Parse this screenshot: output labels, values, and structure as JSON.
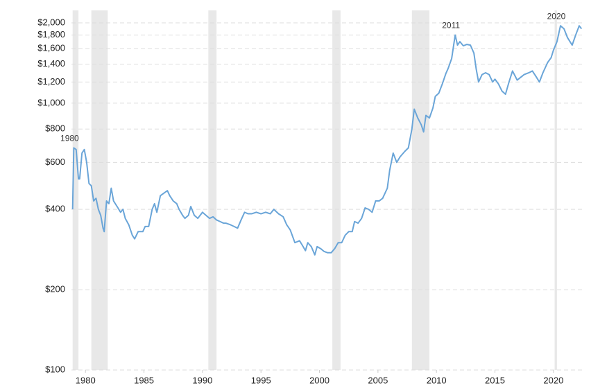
{
  "chart_data": {
    "type": "line",
    "log_y": true,
    "grid": true,
    "xlim": [
      1978.8,
      2022.5
    ],
    "xticks": [
      1980,
      1985,
      1990,
      1995,
      2000,
      2005,
      2010,
      2015,
      2020
    ],
    "ylim": [
      100,
      2200
    ],
    "yticks": [
      {
        "value": 100,
        "label": "$100"
      },
      {
        "value": 200,
        "label": "$200"
      },
      {
        "value": 400,
        "label": "$400"
      },
      {
        "value": 600,
        "label": "$600"
      },
      {
        "value": 800,
        "label": "$800"
      },
      {
        "value": 1000,
        "label": "$1,000"
      },
      {
        "value": 1200,
        "label": "$1,200"
      },
      {
        "value": 1400,
        "label": "$1,400"
      },
      {
        "value": 1600,
        "label": "$1,600"
      },
      {
        "value": 1800,
        "label": "$1,800"
      },
      {
        "value": 2000,
        "label": "$2,000"
      }
    ],
    "recession_color": "#e8e8e8",
    "recessions": [
      [
        1978.9,
        1979.4
      ],
      [
        1980.5,
        1981.9
      ],
      [
        1990.5,
        1991.2
      ],
      [
        2001.1,
        2001.8
      ],
      [
        2007.9,
        2009.4
      ],
      [
        2020.1,
        2020.3
      ]
    ],
    "annotations": [
      {
        "label": "1980",
        "x": 1979.0,
        "y": 680
      },
      {
        "label": "2011",
        "x": 2011.6,
        "y": 1800
      },
      {
        "label": "2020",
        "x": 2020.6,
        "y": 1950
      }
    ],
    "x": [
      1978.9,
      1979.0,
      1979.2,
      1979.4,
      1979.5,
      1979.7,
      1979.9,
      1980.1,
      1980.3,
      1980.5,
      1980.7,
      1980.9,
      1981.1,
      1981.3,
      1981.5,
      1981.6,
      1981.8,
      1982.0,
      1982.2,
      1982.4,
      1982.7,
      1983.0,
      1983.2,
      1983.4,
      1983.7,
      1984.0,
      1984.2,
      1984.5,
      1984.9,
      1985.1,
      1985.4,
      1985.7,
      1985.9,
      1986.1,
      1986.4,
      1986.7,
      1987.0,
      1987.2,
      1987.5,
      1987.8,
      1988.0,
      1988.3,
      1988.5,
      1988.8,
      1989.0,
      1989.3,
      1989.6,
      1990.0,
      1990.3,
      1990.6,
      1990.9,
      1991.2,
      1991.5,
      1991.8,
      1992.0,
      1992.4,
      1992.7,
      1993.0,
      1993.3,
      1993.6,
      1993.9,
      1994.2,
      1994.6,
      1995.0,
      1995.4,
      1995.8,
      1996.1,
      1996.5,
      1996.9,
      1997.2,
      1997.5,
      1997.9,
      1998.3,
      1998.6,
      1998.8,
      1999.0,
      1999.3,
      1999.6,
      1999.8,
      2000.1,
      2000.4,
      2000.7,
      2001.0,
      2001.3,
      2001.6,
      2001.9,
      2002.2,
      2002.5,
      2002.8,
      2003.0,
      2003.3,
      2003.6,
      2003.9,
      2004.2,
      2004.5,
      2004.8,
      2005.1,
      2005.4,
      2005.8,
      2006.0,
      2006.3,
      2006.6,
      2006.9,
      2007.3,
      2007.6,
      2007.9,
      2008.1,
      2008.4,
      2008.7,
      2008.9,
      2009.1,
      2009.4,
      2009.7,
      2009.9,
      2010.2,
      2010.5,
      2010.8,
      2011.0,
      2011.3,
      2011.6,
      2011.8,
      2012.0,
      2012.3,
      2012.6,
      2012.9,
      2013.2,
      2013.4,
      2013.6,
      2013.9,
      2014.2,
      2014.5,
      2014.8,
      2015.0,
      2015.3,
      2015.6,
      2015.9,
      2016.2,
      2016.5,
      2016.9,
      2017.2,
      2017.5,
      2017.9,
      2018.2,
      2018.5,
      2018.8,
      2019.1,
      2019.5,
      2019.8,
      2020.0,
      2020.3,
      2020.6,
      2020.9,
      2021.2,
      2021.6,
      2021.9,
      2022.2,
      2022.4
    ],
    "series": [
      {
        "color": "#6aa5d8",
        "values": [
          400,
          680,
          670,
          520,
          520,
          650,
          670,
          600,
          500,
          490,
          430,
          440,
          400,
          380,
          340,
          330,
          430,
          420,
          480,
          430,
          410,
          390,
          400,
          370,
          350,
          320,
          310,
          330,
          330,
          345,
          345,
          400,
          420,
          390,
          450,
          460,
          470,
          450,
          430,
          420,
          400,
          380,
          370,
          380,
          410,
          380,
          370,
          390,
          380,
          370,
          375,
          365,
          360,
          355,
          355,
          350,
          345,
          340,
          365,
          390,
          385,
          385,
          390,
          385,
          390,
          385,
          400,
          385,
          375,
          350,
          335,
          300,
          305,
          290,
          280,
          300,
          290,
          270,
          290,
          285,
          278,
          275,
          275,
          285,
          300,
          300,
          320,
          330,
          330,
          360,
          355,
          370,
          405,
          400,
          390,
          430,
          430,
          440,
          480,
          560,
          650,
          600,
          630,
          660,
          680,
          800,
          950,
          880,
          830,
          780,
          900,
          880,
          960,
          1060,
          1090,
          1180,
          1290,
          1350,
          1470,
          1800,
          1650,
          1700,
          1640,
          1660,
          1650,
          1540,
          1340,
          1200,
          1280,
          1300,
          1280,
          1200,
          1230,
          1180,
          1110,
          1080,
          1200,
          1320,
          1220,
          1250,
          1280,
          1300,
          1320,
          1260,
          1200,
          1300,
          1420,
          1480,
          1580,
          1700,
          1950,
          1900,
          1760,
          1650,
          1800,
          1950,
          1900
        ]
      }
    ]
  }
}
